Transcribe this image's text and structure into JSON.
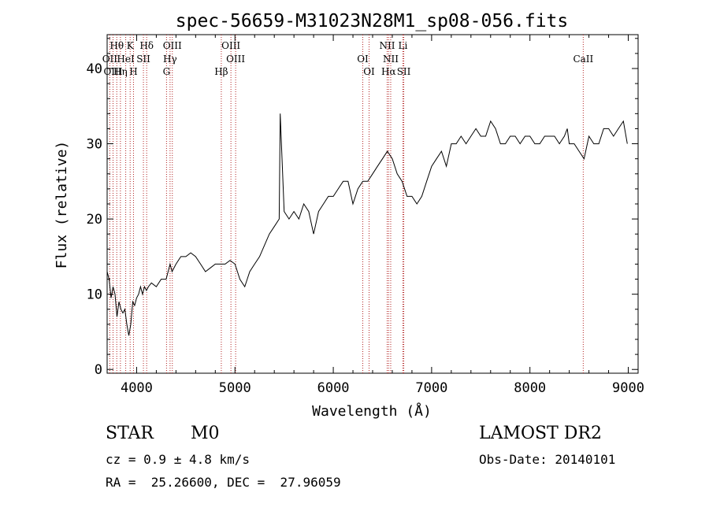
{
  "chart_data": {
    "type": "line",
    "title": "spec-56659-M31023N28M1_sp08-056.fits",
    "xlabel": "Wavelength (Å)",
    "ylabel": "Flux (relative)",
    "xlim": [
      3700,
      9100
    ],
    "ylim": [
      -0.5,
      44.5
    ],
    "x_ticks": [
      4000,
      5000,
      6000,
      7000,
      8000,
      9000
    ],
    "y_ticks": [
      0,
      10,
      20,
      30,
      40
    ],
    "grid": false,
    "line_color": "#000000",
    "marker_color": "#b22222",
    "spectral_lines": [
      {
        "label": "Hθ",
        "x": 3798,
        "row": 0
      },
      {
        "label": "K",
        "x": 3934,
        "row": 0
      },
      {
        "label": "Hδ",
        "x": 4102,
        "row": 0
      },
      {
        "label": "OIII",
        "x": 4363,
        "row": 0
      },
      {
        "label": "OIII",
        "x": 4959,
        "row": 0
      },
      {
        "label": "NII",
        "x": 6548,
        "row": 0
      },
      {
        "label": "Li",
        "x": 6708,
        "row": 0
      },
      {
        "label": "OII",
        "x": 3727,
        "row": 1
      },
      {
        "label": "HeI",
        "x": 3889,
        "row": 1
      },
      {
        "label": "SII",
        "x": 4069,
        "row": 1
      },
      {
        "label": "Hγ",
        "x": 4340,
        "row": 1
      },
      {
        "label": "OIII",
        "x": 5007,
        "row": 1
      },
      {
        "label": "OI",
        "x": 6300,
        "row": 1
      },
      {
        "label": "NII",
        "x": 6584,
        "row": 1
      },
      {
        "label": "CaII",
        "x": 8542,
        "row": 1
      },
      {
        "label": "OIII",
        "x": 3760,
        "row": 2
      },
      {
        "label": "Hη",
        "x": 3835,
        "row": 2
      },
      {
        "label": "H",
        "x": 3968,
        "row": 2
      },
      {
        "label": "G",
        "x": 4304,
        "row": 2
      },
      {
        "label": "Hβ",
        "x": 4861,
        "row": 2
      },
      {
        "label": "OI",
        "x": 6364,
        "row": 2
      },
      {
        "label": "Hα",
        "x": 6563,
        "row": 2
      },
      {
        "label": "SII",
        "x": 6717,
        "row": 2
      }
    ],
    "series": [
      {
        "x": [
          3700,
          3720,
          3740,
          3760,
          3780,
          3800,
          3820,
          3840,
          3860,
          3880,
          3900,
          3920,
          3940,
          3960,
          3980,
          4000,
          4020,
          4040,
          4060,
          4080,
          4100,
          4120,
          4150,
          4200,
          4250,
          4300,
          4340,
          4360,
          4400,
          4450,
          4500,
          4550,
          4600,
          4650,
          4700,
          4750,
          4800,
          4850,
          4900,
          4950,
          5000,
          5050,
          5100,
          5150,
          5200,
          5250,
          5300,
          5350,
          5400,
          5450,
          5460,
          5500,
          5550,
          5600,
          5650,
          5700,
          5750,
          5800,
          5850,
          5900,
          5950,
          6000,
          6050,
          6100,
          6150,
          6200,
          6250,
          6300,
          6350,
          6400,
          6450,
          6500,
          6550,
          6600,
          6650,
          6700,
          6750,
          6800,
          6850,
          6900,
          6950,
          7000,
          7050,
          7100,
          7150,
          7200,
          7250,
          7300,
          7350,
          7400,
          7450,
          7500,
          7550,
          7600,
          7650,
          7700,
          7750,
          7800,
          7850,
          7900,
          7950,
          8000,
          8050,
          8100,
          8150,
          8200,
          8250,
          8300,
          8350,
          8380,
          8400,
          8450,
          8500,
          8550,
          8600,
          8650,
          8700,
          8750,
          8800,
          8850,
          8900,
          8950,
          8990
        ],
        "y": [
          13,
          12,
          9.5,
          11,
          10,
          7,
          9,
          8,
          7.5,
          8,
          6,
          4.5,
          6,
          9,
          8.5,
          9.5,
          10,
          11,
          10,
          11,
          10.5,
          11,
          11.5,
          11,
          12,
          12,
          14,
          13,
          14,
          15,
          15,
          15.5,
          15,
          14,
          13,
          13.5,
          14,
          14,
          14,
          14.5,
          14,
          12,
          11,
          13,
          14,
          15,
          16.5,
          18,
          19,
          20,
          34,
          21,
          20,
          21,
          20,
          22,
          21,
          18,
          21,
          22,
          23,
          23,
          24,
          25,
          25,
          22,
          24,
          25,
          25,
          26,
          27,
          28,
          29,
          28,
          26,
          25,
          23,
          23,
          22,
          23,
          25,
          27,
          28,
          29,
          27,
          30,
          30,
          31,
          30,
          31,
          32,
          31,
          31,
          33,
          32,
          30,
          30,
          31,
          31,
          30,
          31,
          31,
          30,
          30,
          31,
          31,
          31,
          30,
          31,
          32,
          30,
          30,
          29,
          28,
          31,
          30,
          30,
          32,
          32,
          31,
          32,
          33,
          30
        ]
      }
    ]
  },
  "info": {
    "object_class": "STAR",
    "subclass": "M0",
    "survey": "LAMOST DR2",
    "redshift": "cz = 0.9 ± 4.8 km/s",
    "obs_date": "Obs-Date: 20140101",
    "coords": "RA =  25.26600, DEC =  27.96059"
  }
}
